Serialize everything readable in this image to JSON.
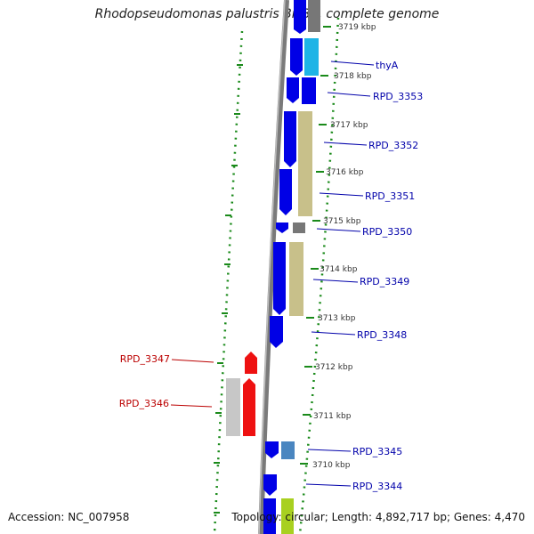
{
  "title": "Rhodopseudomonas palustris BisB5, complete genome",
  "accession": "Accession: NC_007958",
  "topology": "Topology: circular; Length: 4,892,717 bp; Genes: 4,470",
  "colors": {
    "forward_cds": "#0000e6",
    "reverse_cds": "#ee1111",
    "forward_label": "#0000aa",
    "reverse_label": "#bb0000",
    "backbone": "#7a7a7a",
    "gc_skew_dots": "#1a8a1a",
    "tick_text": "#333333",
    "cog_khaki": "#c8c08a",
    "cog_cyan": "#1eb4e6",
    "cog_grey": "#777777",
    "cog_light_grey": "#c7c7c7",
    "cog_steel": "#4a86c0",
    "cog_lime": "#a8d020"
  },
  "tick_labels": [
    "3719 kbp",
    "3718 kbp",
    "3717 kbp",
    "3716 kbp",
    "3715 kbp",
    "3714 kbp",
    "3713 kbp",
    "3712 kbp",
    "3711 kbp",
    "3710 kbp"
  ],
  "forward_genes": [
    "thyA",
    "RPD_3353",
    "RPD_3352",
    "RPD_3351",
    "RPD_3350",
    "RPD_3349",
    "RPD_3348",
    "RPD_3345",
    "RPD_3344"
  ],
  "reverse_genes": [
    "RPD_3347",
    "RPD_3346"
  ]
}
